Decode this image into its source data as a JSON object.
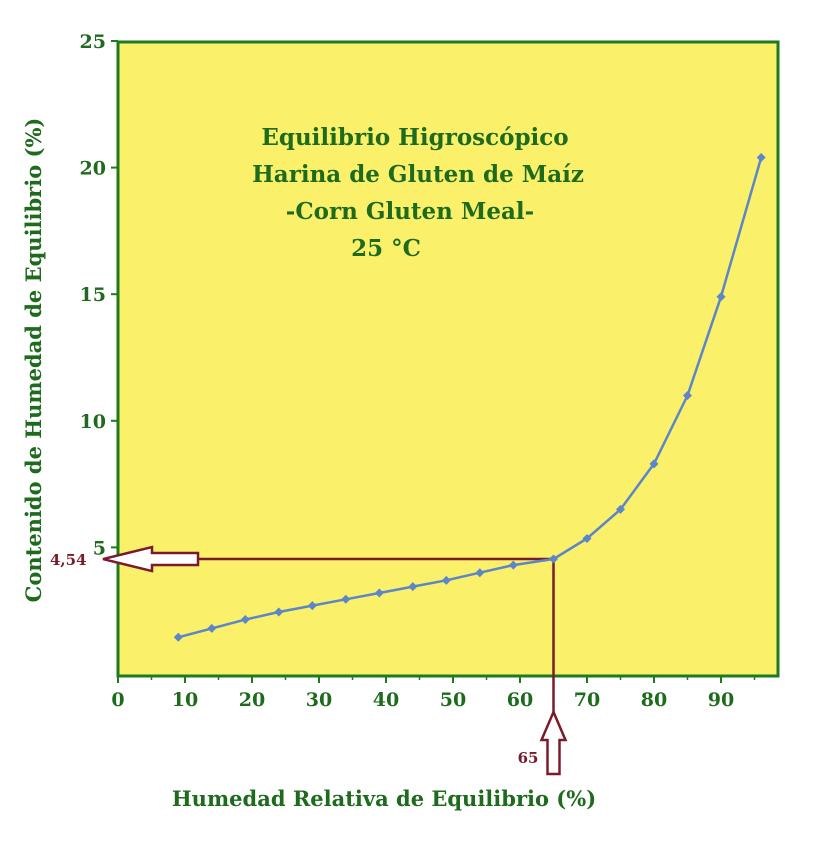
{
  "colors": {
    "plot_background": "#fbf06a",
    "plot_border": "#1e7a1e",
    "text_green": "#1e6b1e",
    "series_line": "#5b86c8",
    "annotation": "#7a1b2b",
    "arrow_fill": "#ffffff"
  },
  "chart_data": {
    "type": "line",
    "title_lines": [
      "Equilibrio Higroscópico",
      "Harina de Gluten de Maíz",
      "-Corn Gluten Meal-",
      "25 °C"
    ],
    "xlabel": "Humedad Relativa de Equilibrio (%)",
    "ylabel": "Contenido de Humedad de Equilibrio (%)",
    "xlim": [
      0,
      98
    ],
    "ylim": [
      0,
      25
    ],
    "x_ticks": [
      0,
      10,
      20,
      30,
      40,
      50,
      60,
      70,
      80,
      90
    ],
    "x_tick_labels": [
      "0",
      "10",
      "20",
      "30",
      "40",
      "50",
      "60",
      "70",
      "80",
      "90"
    ],
    "y_ticks": [
      5,
      10,
      15,
      20,
      25
    ],
    "y_tick_labels": [
      "5",
      "10",
      "15",
      "20",
      "25"
    ],
    "grid": false,
    "series": [
      {
        "x": [
          9,
          14,
          19,
          24,
          29,
          34,
          39,
          44,
          49,
          54,
          59,
          65,
          70,
          75,
          80,
          85,
          90,
          96
        ],
        "y": [
          1.45,
          1.8,
          2.15,
          2.45,
          2.7,
          2.95,
          3.2,
          3.45,
          3.7,
          4.0,
          4.3,
          4.54,
          5.35,
          6.5,
          8.3,
          11.0,
          14.9,
          20.4
        ]
      }
    ],
    "annotations": {
      "x_value": 65,
      "x_label": "65",
      "y_value": 4.54,
      "y_label": "4,54"
    }
  }
}
